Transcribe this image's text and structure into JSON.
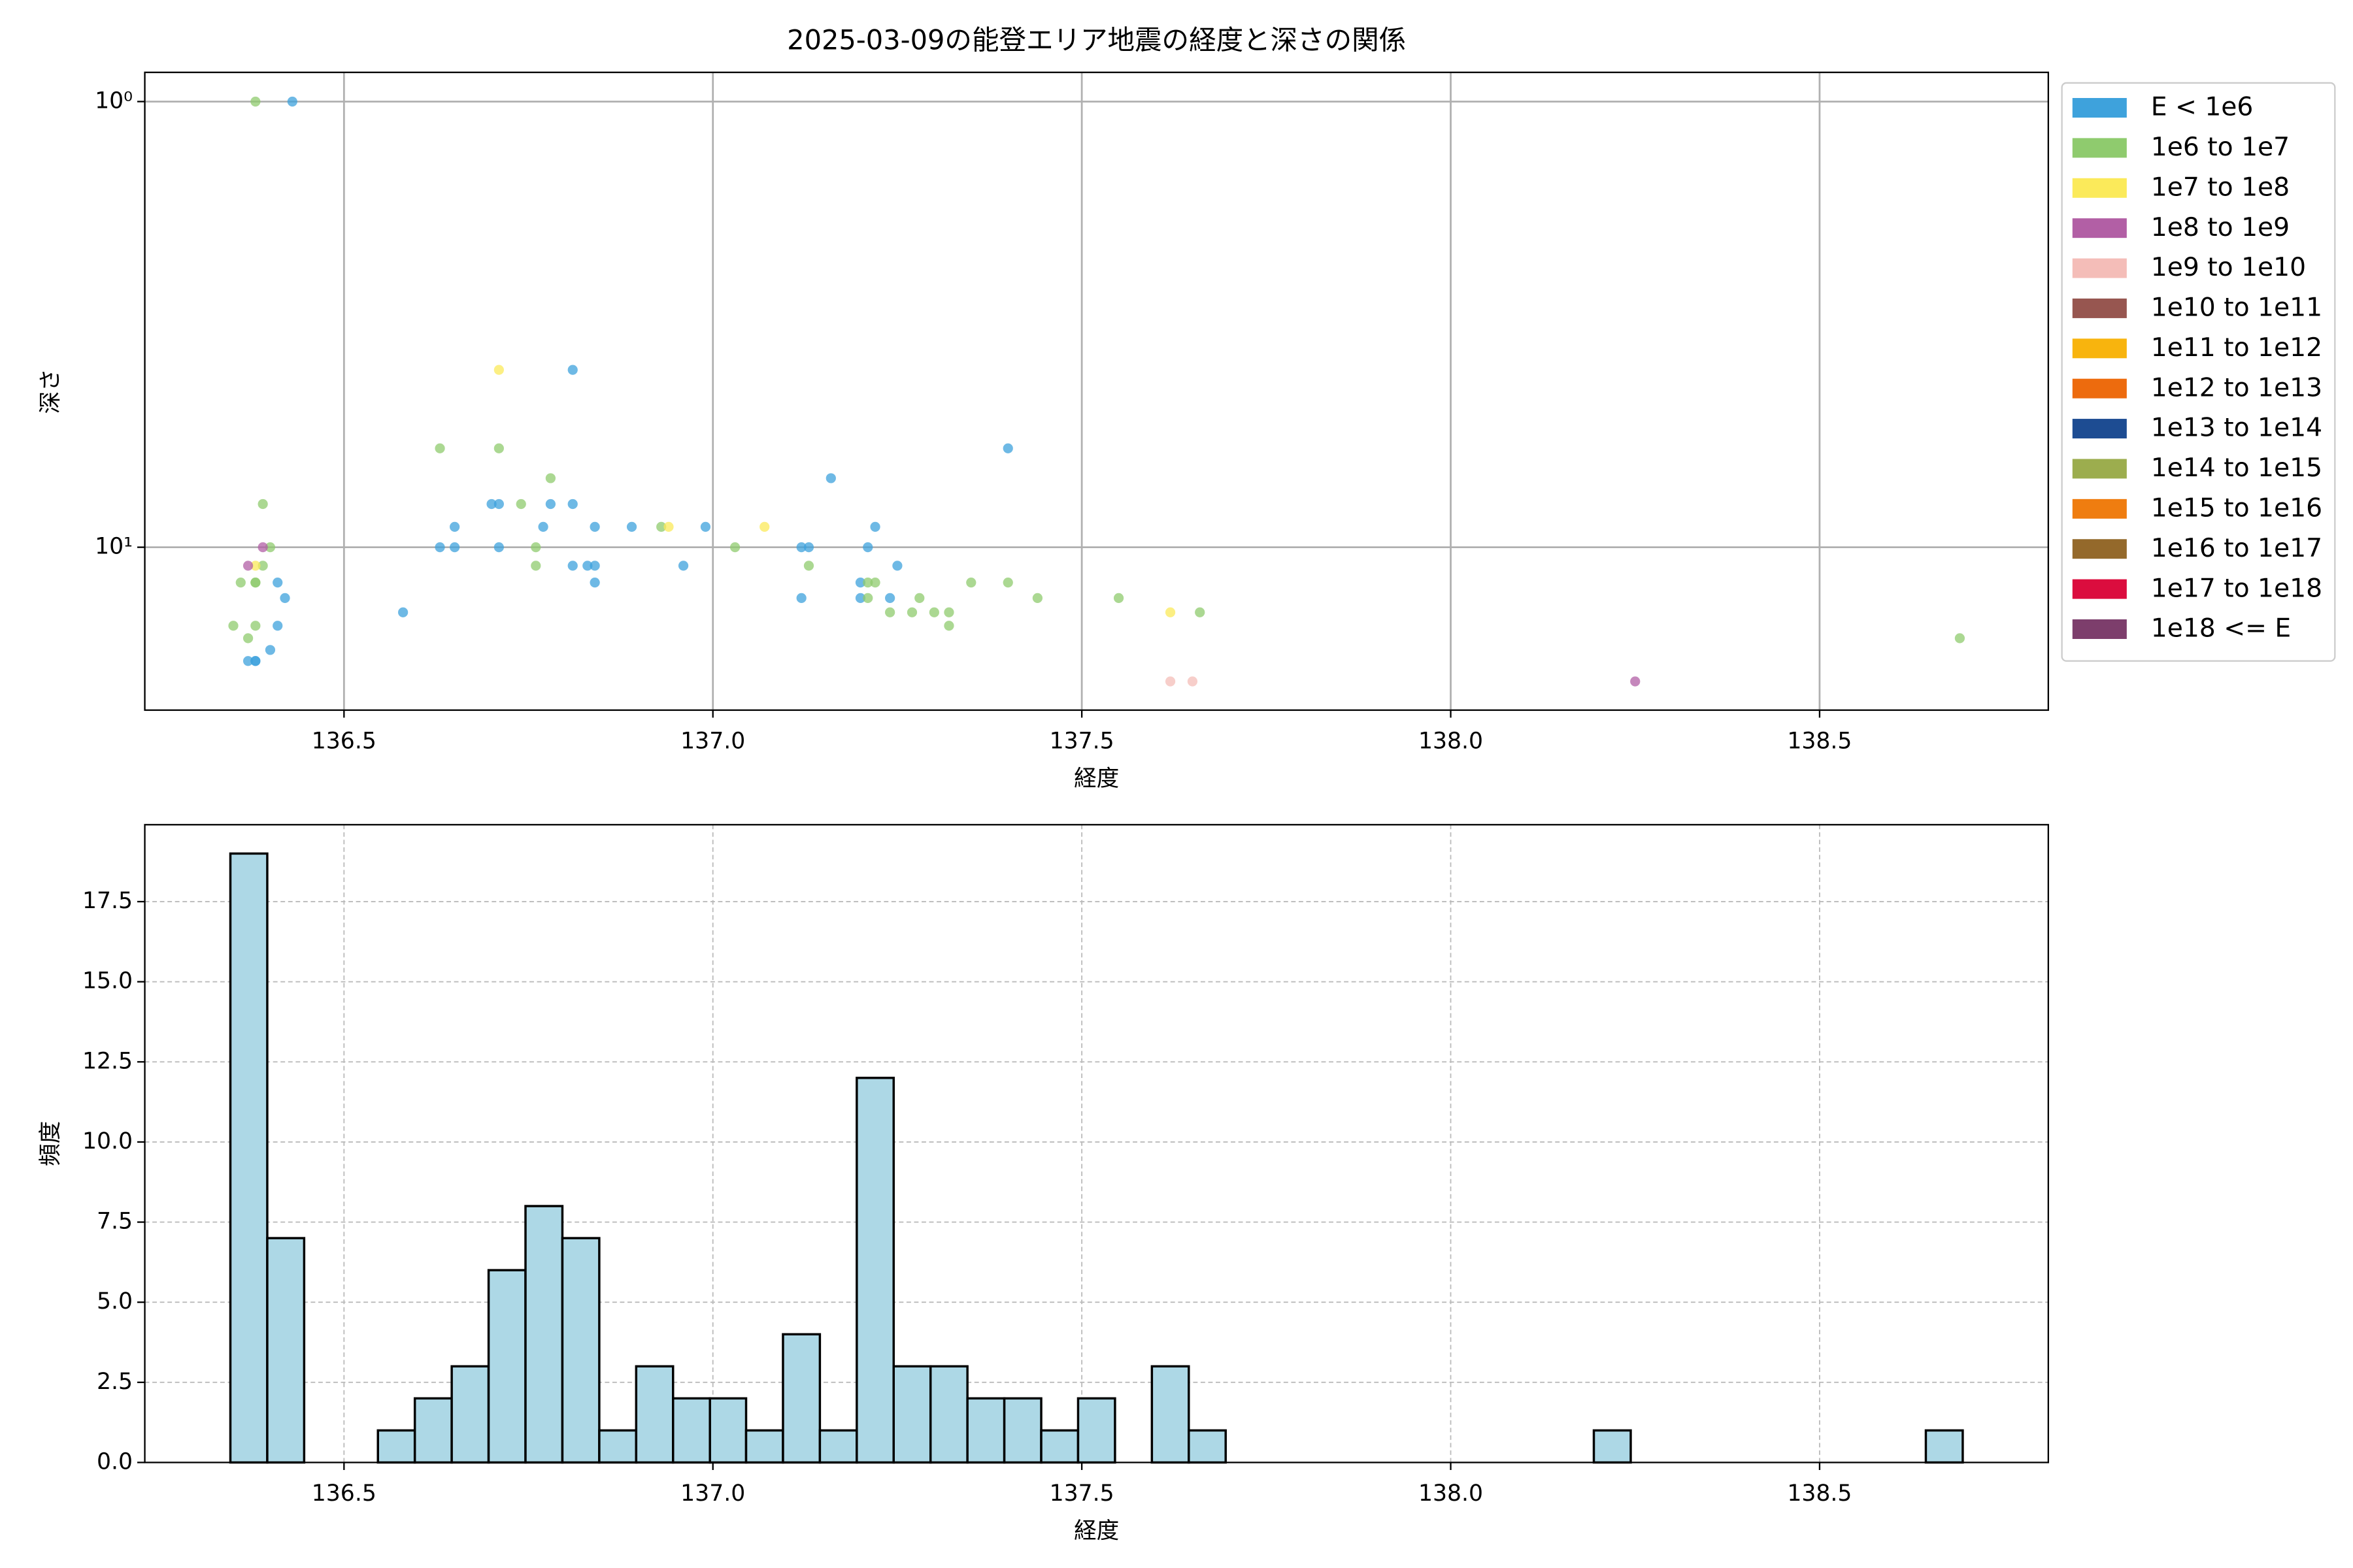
{
  "chart_data": [
    {
      "type": "scatter",
      "title": "2025-03-09の能登エリア地震の経度と深さの関係",
      "xlabel": "経度",
      "ylabel": "深さ",
      "xlim": [
        136.23,
        138.81
      ],
      "xticks": [
        136.5,
        {
          "value": 137,
          "label": "137.0"
        },
        137.5,
        {
          "value": 138,
          "label": "138.0"
        },
        138.5
      ],
      "ylim": [
        23.2,
        0.86
      ],
      "log_scale": true,
      "yticks": [
        {
          "value": 1,
          "label": "10⁰"
        },
        {
          "value": 10,
          "label": "10¹"
        }
      ],
      "grid": true,
      "grid_linestyle": "solid",
      "legend": "outside-right",
      "series": [
        {
          "name": "E < 1e6",
          "color": "#3ea2dc",
          "x": [
            136.43,
            136.81,
            137.4,
            137.16,
            136.7,
            136.71,
            136.78,
            136.81,
            136.65,
            136.77,
            136.84,
            136.89,
            136.99,
            137.22,
            136.63,
            136.65,
            136.71,
            137.12,
            137.13,
            137.21,
            136.81,
            136.83,
            136.84,
            136.96,
            137.25,
            136.41,
            136.84,
            137.2,
            136.42,
            137.12,
            137.2,
            137.24,
            136.58,
            136.41,
            136.4,
            136.37,
            136.38,
            136.38
          ],
          "values": [
            1,
            4,
            6,
            7,
            8,
            8,
            8,
            8,
            9,
            9,
            9,
            9,
            9,
            9,
            10,
            10,
            10,
            10,
            10,
            10,
            11,
            11,
            11,
            11,
            11,
            12,
            12,
            12,
            13,
            13,
            13,
            13,
            14,
            15,
            17,
            18,
            18,
            18
          ]
        },
        {
          "name": "1e6 to 1e7",
          "color": "#8fcb6e",
          "x": [
            136.38,
            136.63,
            136.71,
            136.78,
            136.39,
            136.74,
            136.93,
            136.76,
            136.4,
            137.03,
            136.39,
            136.76,
            137.13,
            136.36,
            136.38,
            136.38,
            137.21,
            137.22,
            137.35,
            137.4,
            137.21,
            137.55,
            137.44,
            137.28,
            137.24,
            137.27,
            137.3,
            137.32,
            137.66,
            136.35,
            136.38,
            137.32,
            136.37,
            138.69
          ],
          "values": [
            1,
            6,
            6,
            7,
            8,
            8,
            9,
            10,
            10,
            10,
            11,
            11,
            11,
            12,
            12,
            12,
            12,
            12,
            12,
            12,
            13,
            13,
            13,
            13,
            14,
            14,
            14,
            14,
            14,
            15,
            15,
            15,
            16,
            16
          ]
        },
        {
          "name": "1e7 to 1e8",
          "color": "#fbea5a",
          "x": [
            136.71,
            136.94,
            137.07,
            136.38,
            137.62
          ],
          "values": [
            4,
            9,
            9,
            11,
            14
          ]
        },
        {
          "name": "1e8 to 1e9",
          "color": "#b25fa5",
          "x": [
            136.39,
            136.37,
            138.25
          ],
          "values": [
            10,
            11,
            20
          ]
        },
        {
          "name": "1e9 to 1e10",
          "color": "#f4bdb8",
          "x": [
            137.62,
            137.65
          ],
          "values": [
            20,
            20
          ]
        },
        {
          "name": "1e10 to 1e11",
          "color": "#975650",
          "x": [],
          "values": []
        },
        {
          "name": "1e11 to 1e12",
          "color": "#f8b40e",
          "x": [],
          "values": []
        },
        {
          "name": "1e12 to 1e13",
          "color": "#ed6b0e",
          "x": [],
          "values": []
        },
        {
          "name": "1e13 to 1e14",
          "color": "#1d4c92",
          "x": [],
          "values": []
        },
        {
          "name": "1e14 to 1e15",
          "color": "#9cad4e",
          "x": [],
          "values": []
        },
        {
          "name": "1e15 to 1e16",
          "color": "#ef7d10",
          "x": [],
          "values": []
        },
        {
          "name": "1e16 to 1e17",
          "color": "#94692b",
          "x": [],
          "values": []
        },
        {
          "name": "1e17 to 1e18",
          "color": "#db0d3e",
          "x": [],
          "values": []
        },
        {
          "name": "1e18 <= E",
          "color": "#7d3e6c",
          "x": [],
          "values": []
        }
      ]
    },
    {
      "type": "histogram",
      "xlabel": "経度",
      "ylabel": "頻度",
      "color": "#add8e6",
      "edgecolor": "#000000",
      "xlim": [
        136.23,
        138.81
      ],
      "xticks": [
        136.5,
        {
          "value": 137,
          "label": "137.0"
        },
        137.5,
        {
          "value": 138,
          "label": "138.0"
        },
        138.5
      ],
      "ylim": [
        0,
        19.9
      ],
      "yticks": [
        {
          "value": 0,
          "label": "0.0"
        },
        2.5,
        {
          "value": 5,
          "label": "5.0"
        },
        7.5,
        {
          "value": 10,
          "label": "10.0"
        },
        12.5,
        {
          "value": 15,
          "label": "15.0"
        },
        17.5
      ],
      "grid": true,
      "grid_linestyle": "dashed",
      "bins": [
        136.346,
        136.396,
        136.446,
        136.496,
        136.546,
        136.596,
        136.646,
        136.696,
        136.746,
        136.796,
        136.846,
        136.896,
        136.946,
        136.996,
        137.045,
        137.095,
        137.145,
        137.195,
        137.245,
        137.295,
        137.345,
        137.395,
        137.445,
        137.495,
        137.545,
        137.595,
        137.645,
        137.695,
        137.745,
        137.795,
        137.845,
        137.895,
        137.945,
        137.995,
        138.045,
        138.094,
        138.144,
        138.194,
        138.244,
        138.294,
        138.344,
        138.394,
        138.444,
        138.494,
        138.544,
        138.594,
        138.644,
        138.694
      ],
      "counts": [
        19,
        7,
        0,
        0,
        1,
        2,
        3,
        6,
        8,
        7,
        1,
        3,
        2,
        2,
        1,
        4,
        1,
        12,
        3,
        3,
        2,
        2,
        1,
        2,
        0,
        3,
        1,
        0,
        0,
        0,
        0,
        0,
        0,
        0,
        0,
        0,
        0,
        1,
        0,
        0,
        0,
        0,
        0,
        0,
        0,
        0,
        1
      ]
    }
  ]
}
